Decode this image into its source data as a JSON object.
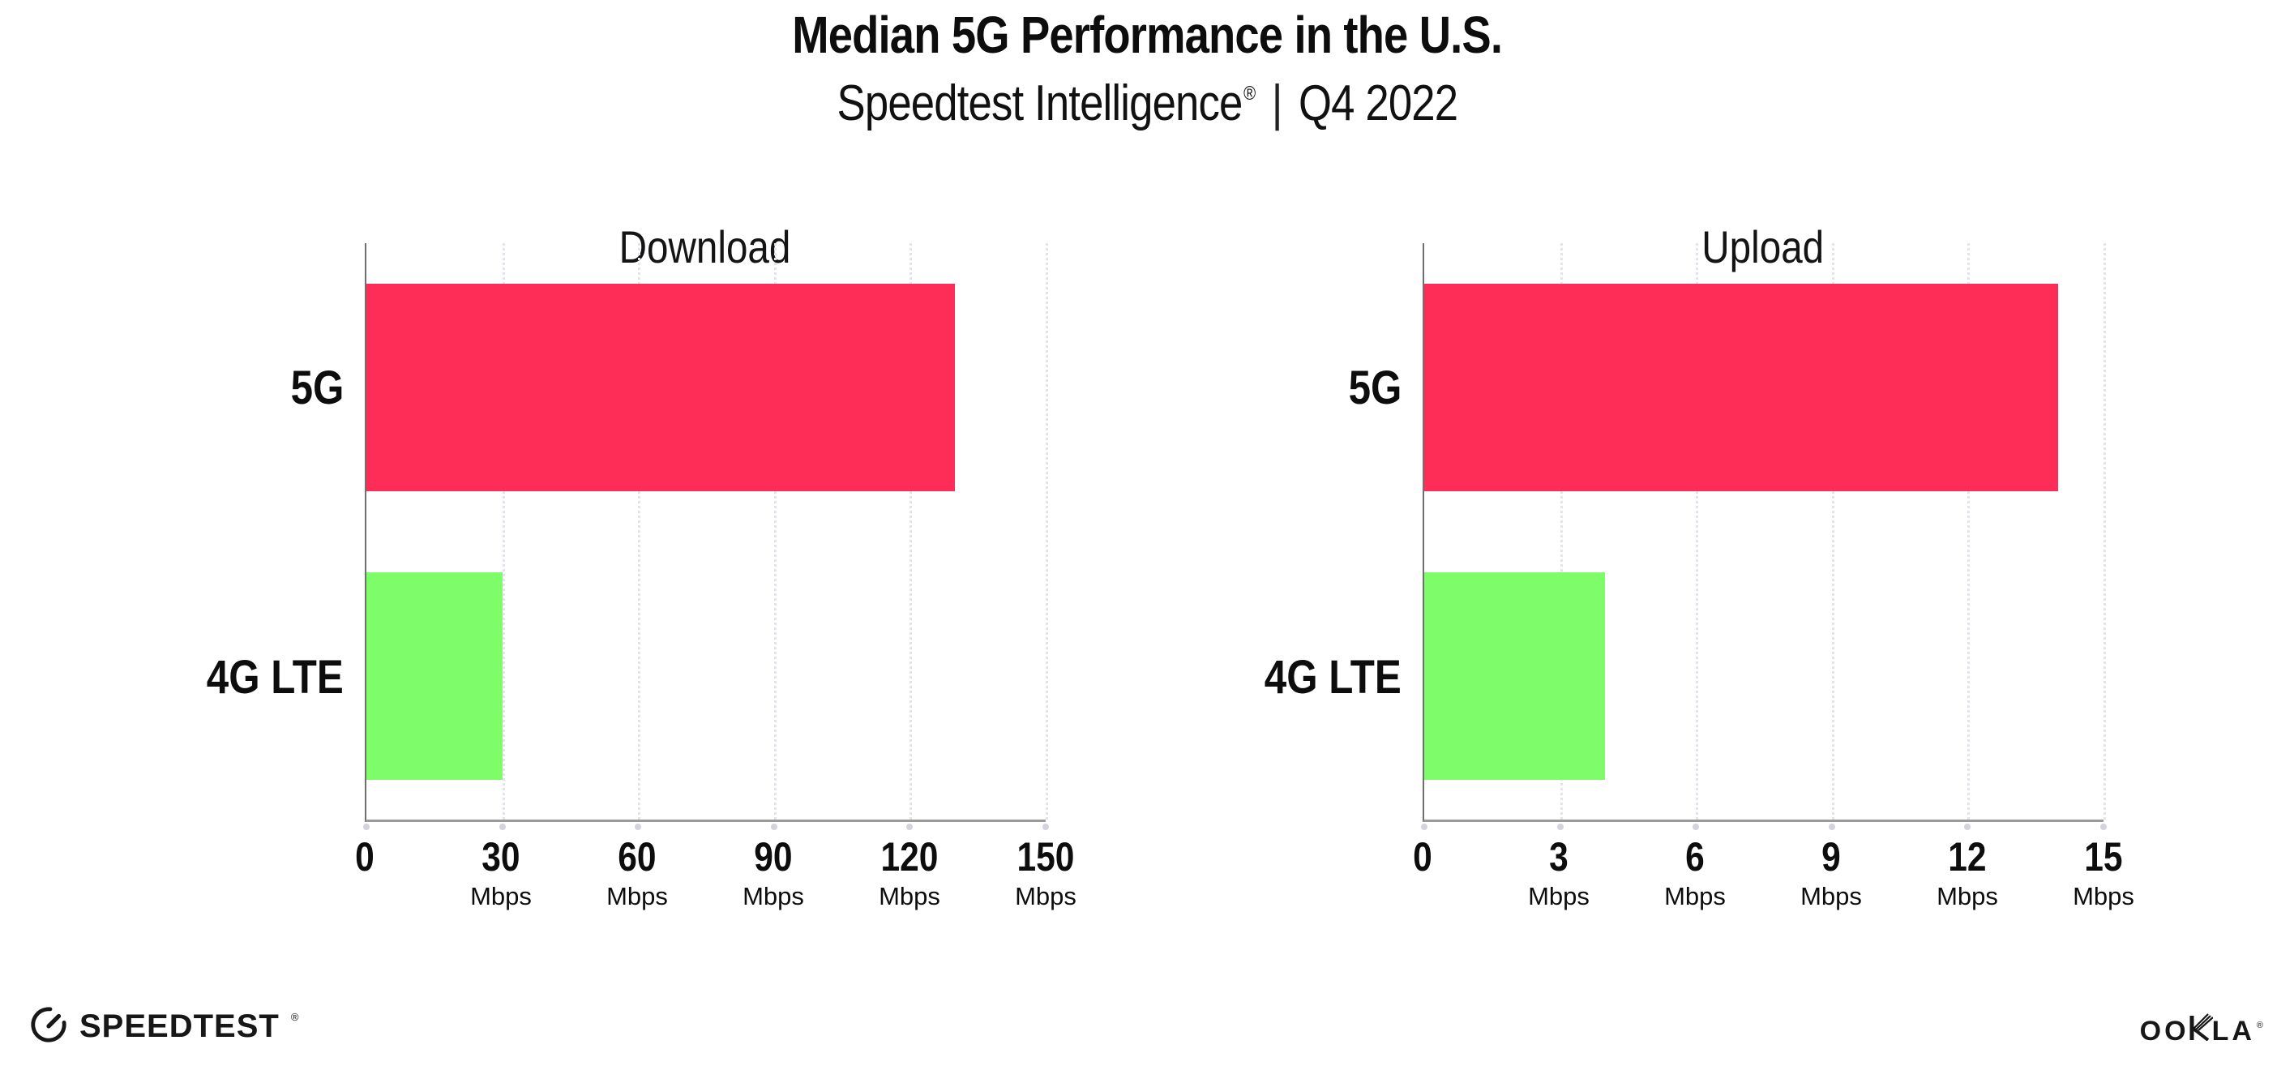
{
  "header": {
    "title": "Median 5G Performance in the U.S.",
    "subtitle": {
      "brand": "Speedtest Intelligence",
      "registered_mark": "®",
      "separator": "|",
      "period": "Q4 2022"
    }
  },
  "colors": {
    "bar_5g": "#FD2D58",
    "bar_4g_lte": "#7FFC69",
    "gridline": "#E3E3EC",
    "axis": "#9B9B9B",
    "text": "#0D0D0D"
  },
  "chart_data": [
    {
      "type": "bar",
      "orientation": "horizontal",
      "title": "Download",
      "categories": [
        "5G",
        "4G LTE"
      ],
      "values": [
        130,
        30
      ],
      "unit": "Mbps",
      "xlabel": "",
      "ylabel": "",
      "xlim": [
        0,
        150
      ],
      "xticks": [
        0,
        30,
        60,
        90,
        120,
        150
      ],
      "bar_colors": [
        "#FD2D58",
        "#7FFC69"
      ],
      "grid": "vertical-dotted",
      "legend": "none"
    },
    {
      "type": "bar",
      "orientation": "horizontal",
      "title": "Upload",
      "categories": [
        "5G",
        "4G LTE"
      ],
      "values": [
        14,
        4
      ],
      "unit": "Mbps",
      "xlabel": "",
      "ylabel": "",
      "xlim": [
        0,
        15
      ],
      "xticks": [
        0,
        3,
        6,
        9,
        12,
        15
      ],
      "bar_colors": [
        "#FD2D58",
        "#7FFC69"
      ],
      "grid": "vertical-dotted",
      "legend": "none"
    }
  ],
  "footer": {
    "speedtest_wordmark": "SPEEDTEST",
    "speedtest_registered_mark": "®",
    "ookla_wordmark_left": "OO",
    "ookla_wordmark_right": "LA",
    "ookla_registered_mark": "®"
  }
}
